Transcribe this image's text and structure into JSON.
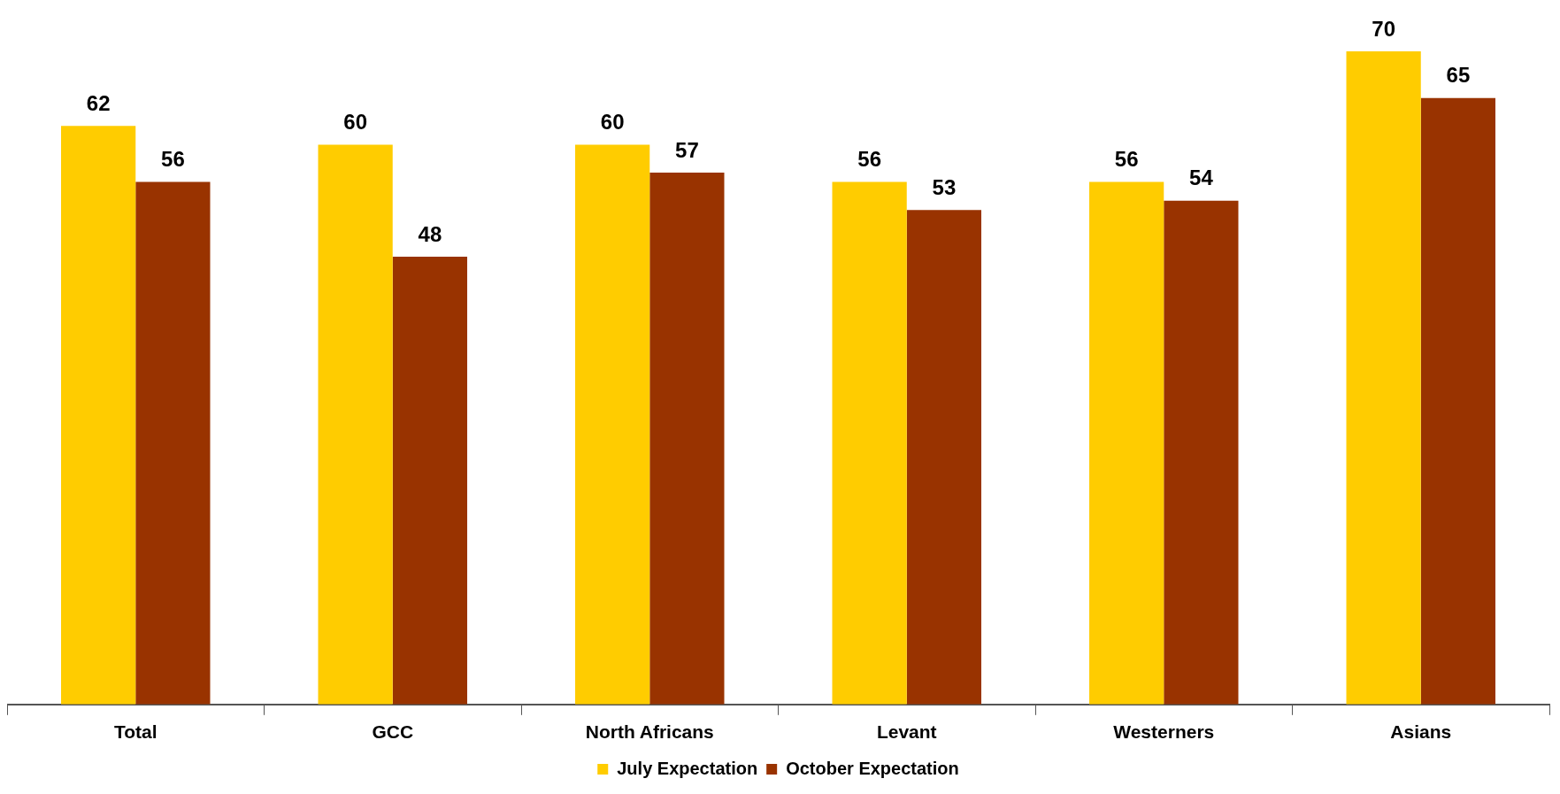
{
  "chart_data": {
    "type": "bar",
    "categories": [
      "Total",
      "GCC",
      "North Africans",
      "Levant",
      "Westerners",
      "Asians"
    ],
    "series": [
      {
        "name": "July Expectation",
        "color": "#ffcc00",
        "values": [
          62,
          60,
          60,
          56,
          56,
          70
        ]
      },
      {
        "name": "October Expectation",
        "color": "#993300",
        "values": [
          56,
          48,
          57,
          53,
          54,
          65
        ]
      }
    ],
    "data_labels": true,
    "grid": false,
    "legend": "bottom"
  }
}
